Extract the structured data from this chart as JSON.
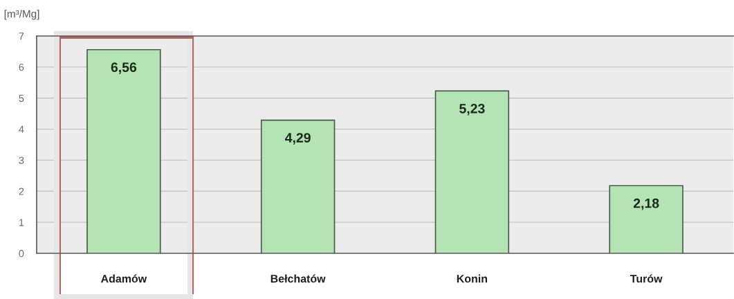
{
  "chart_data": {
    "type": "bar",
    "ylabel": "[m³/Mg]",
    "categories": [
      "Adamów",
      "Bełchatów",
      "Konin",
      "Turów"
    ],
    "values": [
      6.56,
      4.29,
      5.23,
      2.18
    ],
    "value_labels": [
      "6,56",
      "4,29",
      "5,23",
      "2,18"
    ],
    "color": "#b4e4b4",
    "ylim": [
      0,
      7
    ],
    "yticks": [
      0,
      1,
      2,
      3,
      4,
      5,
      6,
      7
    ],
    "grid": "y"
  }
}
